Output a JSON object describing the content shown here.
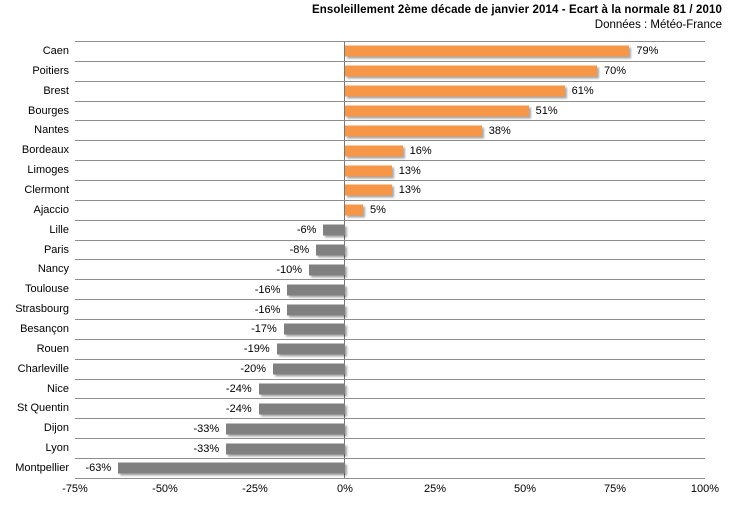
{
  "header": {
    "title": "Ensoleillement 2ème décade de janvier 2014 - Ecart à la normale 81 / 2010",
    "subtitle": "Données : Météo-France"
  },
  "chart_data": {
    "type": "bar",
    "orientation": "horizontal",
    "title": "Ensoleillement 2ème décade de janvier 2014 - Ecart à la normale 81 / 2010",
    "subtitle": "Données : Météo-France",
    "categories": [
      "Caen",
      "Poitiers",
      "Brest",
      "Bourges",
      "Nantes",
      "Bordeaux",
      "Limoges",
      "Clermont",
      "Ajaccio",
      "Lille",
      "Paris",
      "Nancy",
      "Toulouse",
      "Strasbourg",
      "Besançon",
      "Rouen",
      "Charleville",
      "Nice",
      "St Quentin",
      "Dijon",
      "Lyon",
      "Montpellier"
    ],
    "values": [
      79,
      70,
      61,
      51,
      38,
      16,
      13,
      13,
      5,
      -6,
      -8,
      -10,
      -16,
      -16,
      -17,
      -19,
      -20,
      -24,
      -24,
      -33,
      -33,
      -63
    ],
    "value_labels": [
      "79%",
      "70%",
      "61%",
      "51%",
      "38%",
      "16%",
      "13%",
      "13%",
      "5%",
      "-6%",
      "-8%",
      "-10%",
      "-16%",
      "-16%",
      "-17%",
      "-19%",
      "-20%",
      "-24%",
      "-24%",
      "-33%",
      "-33%",
      "-63%"
    ],
    "xlabel": "",
    "ylabel": "",
    "xlim": [
      -75,
      100
    ],
    "xtick_values": [
      -75,
      -50,
      -25,
      0,
      25,
      50,
      75,
      100
    ],
    "xtick_labels": [
      "-75%",
      "-50%",
      "-25%",
      "0%",
      "25%",
      "50%",
      "75%",
      "100%"
    ],
    "grid": "horizontal category separator lines, vertical zero axis",
    "legend": "none",
    "colors": {
      "positive_bar": "#f79646",
      "negative_bar": "#808080",
      "gridline": "#8d8d8d",
      "zero_axis": "#767676",
      "text": "#000000",
      "background": "#ffffff"
    }
  }
}
